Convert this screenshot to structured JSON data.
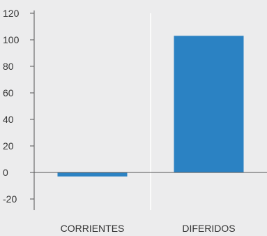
{
  "chart_data": {
    "type": "bar",
    "categories": [
      "CORRIENTES",
      "DIFERIDOS"
    ],
    "values": [
      -3,
      103
    ],
    "ylim": [
      -20,
      120
    ],
    "yticks": [
      -20,
      0,
      20,
      40,
      60,
      80,
      100,
      120
    ],
    "grid": "vertical",
    "colors": {
      "bar": "#2b82c3",
      "background": "#ececed",
      "grid": "#ffffff",
      "axis": "#555555"
    }
  }
}
